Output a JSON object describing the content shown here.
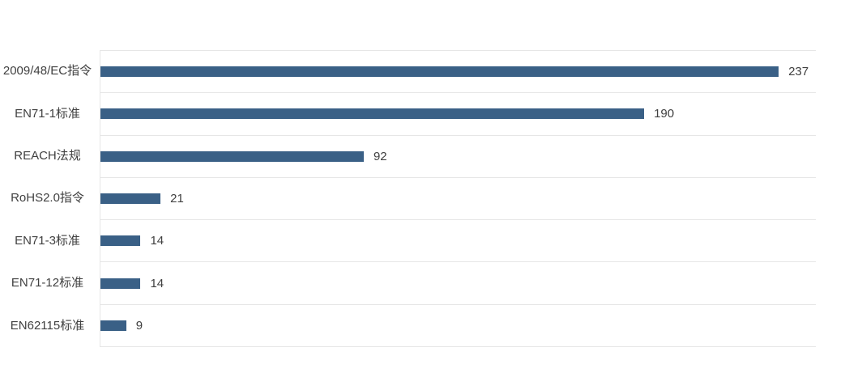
{
  "chart_data": {
    "type": "bar",
    "orientation": "horizontal",
    "title": "",
    "xlabel": "",
    "ylabel": "",
    "categories": [
      "2009/48/EC指令",
      "EN71-1标准",
      "REACH法规",
      "RoHS2.0指令",
      "EN71-3标准",
      "EN71-12标准",
      "EN62115标准"
    ],
    "label_lines": [
      [
        "2009/48/EC",
        "指令"
      ],
      [
        "EN71-1标准"
      ],
      [
        "REACH法规"
      ],
      [
        "RoHS2.0指令"
      ],
      [
        "EN71-3标准"
      ],
      [
        "EN71-12标准"
      ],
      [
        "EN62115标",
        "准"
      ]
    ],
    "values": [
      237,
      190,
      92,
      21,
      14,
      14,
      9
    ],
    "xlim": [
      0,
      250
    ],
    "grid": "horizontal row separators only",
    "legend": "none",
    "data_labels": "at end of each bar",
    "bar_color": "#3A6086",
    "grid_color": "#E6E6E6",
    "label_color": "#404040",
    "value_color": "#404040",
    "background_color": "#FFFFFF"
  }
}
